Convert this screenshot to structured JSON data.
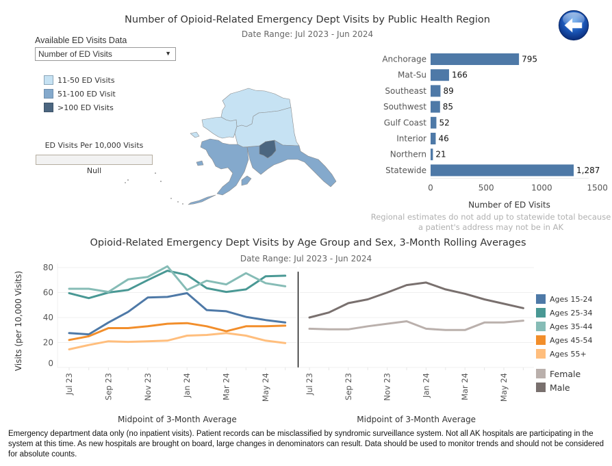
{
  "header": {
    "title": "Number of Opioid-Related Emergency Dept Visits by Public Health Region",
    "subtitle": "Date Range: Jul 2023 - Jun 2024",
    "back_button_icon": "back-arrow-icon"
  },
  "filter": {
    "label": "Available ED Visits Data",
    "selected": "Number of ED Visits"
  },
  "map_legend": {
    "items": [
      {
        "label": "11-50 ED Visits",
        "color": "#c6e2f3"
      },
      {
        "label": "51-100 ED Visit",
        "color": "#84a9cc"
      },
      {
        "label": ">100 ED Visits",
        "color": "#4b6680"
      }
    ]
  },
  "per10k": {
    "label": "ED Visits Per 10,000 Visits",
    "value": "Null"
  },
  "region_note": "Regional estimates do not add up to statewide total because a patient's address may not be in AK",
  "age_section": {
    "title": "Opioid-Related Emergency Dept Visits by Age Group and Sex, 3-Month Rolling Averages",
    "subtitle": "Date Range: Jul 2023 - Jun 2024"
  },
  "footnote": "Emergency department data only (no inpatient visits). Patient records can be misclassified by syndromic surveillance system. Not all AK hospitals are participating in the system at this time. As new hospitals are brought on board, large changes in denominators can result. Data should be used to monitor trends and should not be considered for absolute counts.",
  "chart_data": [
    {
      "type": "bar",
      "orientation": "horizontal",
      "title": "Number of Opioid-Related Emergency Dept Visits by Public Health Region",
      "categories": [
        "Anchorage",
        "Mat-Su",
        "Southeast",
        "Southwest",
        "Gulf Coast",
        "Interior",
        "Northern",
        "Statewide"
      ],
      "values": [
        795,
        166,
        89,
        85,
        52,
        46,
        21,
        1287
      ],
      "value_labels": [
        "795",
        "166",
        "89",
        "85",
        "52",
        "46",
        "21",
        "1,287"
      ],
      "xlabel": "Number of ED Visits",
      "xlim": [
        0,
        1650
      ],
      "xticks": [
        0,
        500,
        1000,
        1500
      ],
      "color": "#4e79a7"
    },
    {
      "type": "line",
      "title": "Opioid-Related Emergency Dept Visits by Age Group, 3-Month Rolling Averages",
      "x": [
        "Jul 23",
        "Aug 23",
        "Sep 23",
        "Oct 23",
        "Nov 23",
        "Dec 23",
        "Jan 24",
        "Feb 24",
        "Mar 24",
        "Apr 24",
        "May 24",
        "Jun 24"
      ],
      "xtick_labels": [
        "Jul 23",
        "Sep 23",
        "Nov 23",
        "Jan 24",
        "Mar 24",
        "May 24"
      ],
      "xlabel": "Midpoint of 3-Month Average",
      "ylabel": "Visits (per 10,000 Visits)",
      "ylim": [
        0,
        85
      ],
      "yticks": [
        0,
        20,
        40,
        60,
        80
      ],
      "grid": true,
      "series": [
        {
          "name": "Ages 15-24",
          "color": "#4e79a7",
          "values": [
            27.5,
            26.5,
            36,
            44.5,
            56,
            56.5,
            59.5,
            46,
            45,
            40.5,
            38,
            36
          ]
        },
        {
          "name": "Ages 25-34",
          "color": "#499894",
          "values": [
            59.5,
            55.5,
            60,
            62,
            70,
            77.5,
            74,
            63.5,
            60.5,
            62.5,
            73,
            73.5
          ]
        },
        {
          "name": "Ages 35-44",
          "color": "#86bcb6",
          "values": [
            63,
            63,
            60.5,
            70.5,
            72.5,
            81,
            62,
            69.5,
            66.5,
            75.5,
            67.5,
            65
          ]
        },
        {
          "name": "Ages 45-54",
          "color": "#f28e2b",
          "values": [
            22,
            25,
            31.5,
            31.5,
            33,
            35,
            35.5,
            33,
            29,
            33,
            33,
            33.5
          ]
        },
        {
          "name": "Ages 55+",
          "color": "#ffbe7d",
          "values": [
            14.5,
            18,
            21,
            20.5,
            21,
            21.5,
            25.5,
            26,
            27.5,
            25.5,
            21.5,
            19.5
          ]
        }
      ]
    },
    {
      "type": "line",
      "title": "Opioid-Related Emergency Dept Visits by Sex, 3-Month Rolling Averages",
      "x": [
        "Jul 23",
        "Aug 23",
        "Sep 23",
        "Oct 23",
        "Nov 23",
        "Dec 23",
        "Jan 24",
        "Feb 24",
        "Mar 24",
        "Apr 24",
        "May 24",
        "Jun 24"
      ],
      "xtick_labels": [
        "Jul 23",
        "Sep 23",
        "Nov 23",
        "Jan 24",
        "Mar 24",
        "May 24"
      ],
      "xlabel": "Midpoint of 3-Month Average",
      "ylabel": "",
      "ylim": [
        0,
        85
      ],
      "grid": true,
      "series": [
        {
          "name": "Female",
          "color": "#bab0ac",
          "values": [
            31,
            30.5,
            30.5,
            33,
            35,
            37,
            31,
            30,
            30,
            36,
            36,
            37.5
          ]
        },
        {
          "name": "Male",
          "color": "#79706e",
          "values": [
            40,
            44,
            51.5,
            54.5,
            60,
            66,
            68,
            62.5,
            59,
            54.5,
            51,
            47.5
          ]
        }
      ]
    }
  ]
}
